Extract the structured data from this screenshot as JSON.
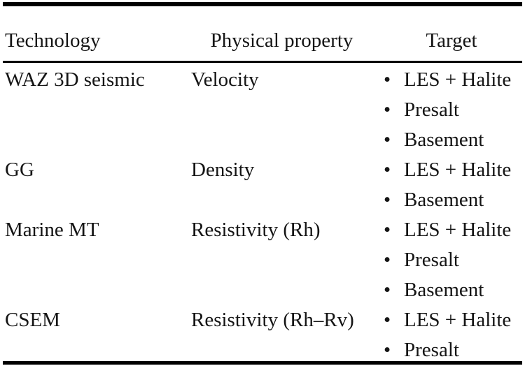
{
  "table": {
    "bullet": "•",
    "columns": [
      {
        "label": "Technology"
      },
      {
        "label": "Physical property"
      },
      {
        "label": "Target"
      }
    ],
    "rows": [
      {
        "technology": "WAZ 3D seismic",
        "physical_property": "Velocity",
        "targets": [
          "LES + Halite",
          "Presalt",
          "Basement"
        ]
      },
      {
        "technology": "GG",
        "physical_property": "Density",
        "targets": [
          "LES + Halite",
          "Basement"
        ]
      },
      {
        "technology": "Marine MT",
        "physical_property": "Resistivity (Rh)",
        "targets": [
          "LES + Halite",
          "Presalt",
          "Basement"
        ]
      },
      {
        "technology": "CSEM",
        "physical_property": "Resistivity (Rh–Rv)",
        "targets": [
          "LES + Halite",
          "Presalt"
        ]
      }
    ]
  },
  "colors": {
    "text": "#151515",
    "rule": "#000000",
    "background": "#ffffff"
  }
}
